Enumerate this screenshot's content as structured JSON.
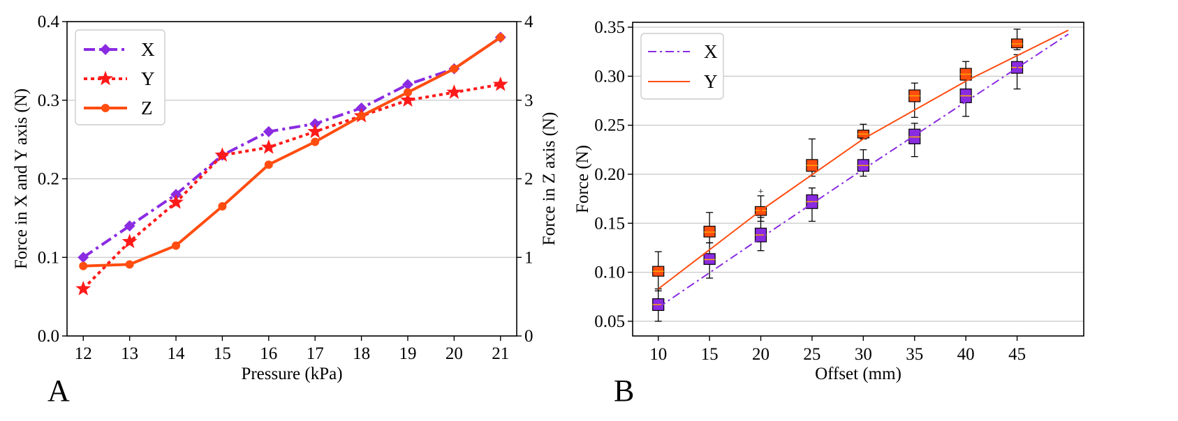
{
  "chart_data": [
    {
      "panel": "A",
      "type": "line",
      "xlabel": "Pressure (kPa)",
      "ylabel": "Force in X and Y axis (N)",
      "y2label": "Force in Z axis (N)",
      "x": [
        12,
        13,
        14,
        15,
        16,
        17,
        18,
        19,
        20,
        21
      ],
      "xticks": [
        "12",
        "13",
        "14",
        "15",
        "16",
        "17",
        "18",
        "19",
        "20",
        "21"
      ],
      "xlim": [
        11.65,
        21.35
      ],
      "ylim": [
        0.0,
        0.4
      ],
      "yticks": [
        "0.0",
        "0.1",
        "0.2",
        "0.3",
        "0.4"
      ],
      "y2lim": [
        0,
        4
      ],
      "y2ticks": [
        "0",
        "1",
        "2",
        "3",
        "4"
      ],
      "grid": true,
      "legend_position": "top-left",
      "series": [
        {
          "name": "X",
          "axis": "left",
          "style": "dashdot",
          "marker": "diamond",
          "color": "#8a2be2",
          "values": [
            0.1,
            0.14,
            0.18,
            0.23,
            0.26,
            0.27,
            0.29,
            0.32,
            0.34,
            0.38
          ]
        },
        {
          "name": "Y",
          "axis": "left",
          "style": "dotted",
          "marker": "star",
          "color": "#ff1a1a",
          "values": [
            0.06,
            0.12,
            0.17,
            0.23,
            0.24,
            0.26,
            0.28,
            0.3,
            0.31,
            0.32
          ]
        },
        {
          "name": "Z",
          "axis": "right",
          "style": "solid",
          "marker": "circle",
          "color": "#ff4d10",
          "values": [
            0.89,
            0.91,
            1.15,
            1.65,
            2.18,
            2.47,
            2.8,
            3.1,
            3.4,
            3.8
          ]
        }
      ]
    },
    {
      "panel": "B",
      "type": "box",
      "xlabel": "Offset (mm)",
      "ylabel": "Force (N)",
      "x": [
        10,
        15,
        20,
        25,
        30,
        35,
        40,
        45
      ],
      "xticks": [
        "10",
        "15",
        "20",
        "25",
        "30",
        "35",
        "40",
        "45"
      ],
      "xlim": [
        7.5,
        51.5
      ],
      "ylim": [
        0.035,
        0.355
      ],
      "yticks": [
        "0.05",
        "0.10",
        "0.15",
        "0.20",
        "0.25",
        "0.30",
        "0.35"
      ],
      "grid": true,
      "legend_position": "top-left",
      "series": [
        {
          "name": "X",
          "style": "dashdot",
          "color": "#8a2be2",
          "fit": {
            "x": [
              10,
              20,
              30,
              40,
              50
            ],
            "y": [
              0.064,
              0.135,
              0.205,
              0.274,
              0.343
            ]
          },
          "boxes": [
            {
              "x": 10,
              "q1": 0.061,
              "median": 0.067,
              "q3": 0.073,
              "whisker_low": 0.05,
              "whisker_high": 0.083
            },
            {
              "x": 15,
              "q1": 0.108,
              "median": 0.113,
              "q3": 0.119,
              "whisker_low": 0.094,
              "whisker_high": 0.13
            },
            {
              "x": 20,
              "q1": 0.131,
              "median": 0.138,
              "q3": 0.145,
              "whisker_low": 0.122,
              "whisker_high": 0.156,
              "outliers": [
                0.183
              ]
            },
            {
              "x": 25,
              "q1": 0.165,
              "median": 0.172,
              "q3": 0.179,
              "whisker_low": 0.152,
              "whisker_high": 0.186
            },
            {
              "x": 30,
              "q1": 0.203,
              "median": 0.209,
              "q3": 0.215,
              "whisker_low": 0.198,
              "whisker_high": 0.225
            },
            {
              "x": 35,
              "q1": 0.231,
              "median": 0.238,
              "q3": 0.246,
              "whisker_low": 0.218,
              "whisker_high": 0.252
            },
            {
              "x": 40,
              "q1": 0.273,
              "median": 0.28,
              "q3": 0.287,
              "whisker_low": 0.259,
              "whisker_high": 0.297
            },
            {
              "x": 45,
              "q1": 0.303,
              "median": 0.309,
              "q3": 0.315,
              "whisker_low": 0.287,
              "whisker_high": 0.322
            }
          ]
        },
        {
          "name": "Y",
          "style": "solid",
          "color": "#ff4d10",
          "fit": {
            "x": [
              10,
              20,
              30,
              40,
              50
            ],
            "y": [
              0.083,
              0.163,
              0.236,
              0.295,
              0.347
            ]
          },
          "boxes": [
            {
              "x": 10,
              "q1": 0.096,
              "median": 0.101,
              "q3": 0.106,
              "whisker_low": 0.081,
              "whisker_high": 0.121
            },
            {
              "x": 15,
              "q1": 0.136,
              "median": 0.141,
              "q3": 0.147,
              "whisker_low": 0.13,
              "whisker_high": 0.161
            },
            {
              "x": 20,
              "q1": 0.158,
              "median": 0.163,
              "q3": 0.167,
              "whisker_low": 0.152,
              "whisker_high": 0.178
            },
            {
              "x": 25,
              "q1": 0.203,
              "median": 0.209,
              "q3": 0.215,
              "whisker_low": 0.198,
              "whisker_high": 0.236
            },
            {
              "x": 30,
              "q1": 0.237,
              "median": 0.241,
              "q3": 0.245,
              "whisker_low": 0.236,
              "whisker_high": 0.251
            },
            {
              "x": 35,
              "q1": 0.274,
              "median": 0.28,
              "q3": 0.286,
              "whisker_low": 0.258,
              "whisker_high": 0.293
            },
            {
              "x": 40,
              "q1": 0.296,
              "median": 0.302,
              "q3": 0.308,
              "whisker_low": 0.296,
              "whisker_high": 0.315
            },
            {
              "x": 45,
              "q1": 0.329,
              "median": 0.333,
              "q3": 0.338,
              "whisker_low": 0.327,
              "whisker_high": 0.348
            }
          ]
        }
      ]
    }
  ],
  "panel_labels": {
    "a": "A",
    "b": "B"
  }
}
